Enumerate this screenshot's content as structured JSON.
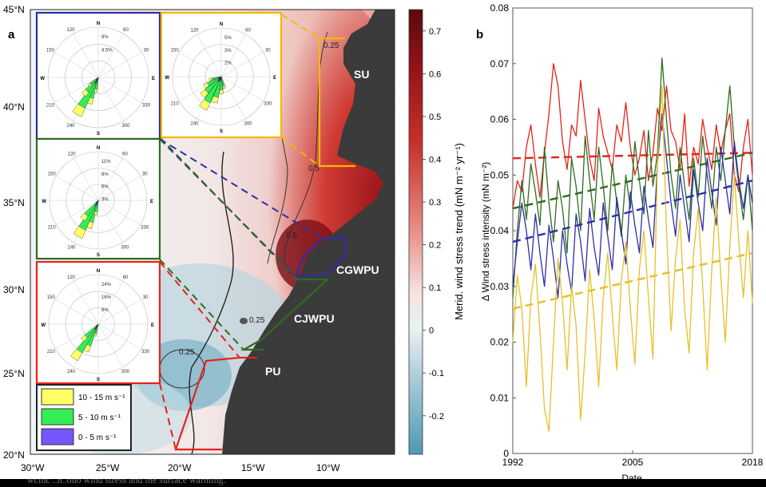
{
  "panel_a": {
    "label": "a",
    "lat_ticks": [
      "45°N",
      "40°N",
      "35°N",
      "30°N",
      "25°N",
      "20°N"
    ],
    "lon_ticks": [
      "30°W",
      "25°W",
      "20°W",
      "15°W",
      "10°W"
    ],
    "regions": [
      "SU",
      "CGWPU",
      "CJWPU",
      "PU"
    ],
    "region_colors": {
      "SU": "#f5b800",
      "CGWPU": "#2e2ea8",
      "CJWPU": "#2e6b1e",
      "PU": "#e8211a"
    },
    "contours": [
      "0.5",
      "0.5",
      "0.25",
      "0.25",
      "0.25"
    ],
    "colorbar": {
      "label": "Merid. wind stress trend (mN m⁻² yr⁻¹)",
      "ticks": [
        "0.7",
        "0.6",
        "0.5",
        "0.4",
        "0.3",
        "0.2",
        "0.1",
        "0",
        "-0.1",
        "-0.2"
      ]
    },
    "rose_dirs": {
      "n": "N",
      "e": "E",
      "s": "S",
      "w": "W"
    },
    "rose_angles": [
      "120",
      "60",
      "150",
      "30",
      "210",
      "330",
      "240",
      "300"
    ],
    "roses": [
      {
        "id": "rose-cgwpu",
        "color": "#2e2ea8",
        "rings": [
          "9%",
          "4.5%"
        ]
      },
      {
        "id": "rose-su",
        "color": "#f5b800",
        "rings": [
          "5%",
          "3%",
          "2%"
        ]
      },
      {
        "id": "rose-cjwpu",
        "color": "#2e6b1e",
        "rings": [
          "11%",
          "8%",
          "6%",
          "3%"
        ]
      },
      {
        "id": "rose-pu",
        "color": "#e8211a",
        "rings": [
          "24%",
          "16%",
          "8%"
        ]
      }
    ],
    "legend": [
      {
        "label": "10 - 15 m s⁻¹",
        "color": "#ffff66"
      },
      {
        "label": "5 - 10 m s⁻¹",
        "color": "#33ee55"
      },
      {
        "label": "0 - 5 m s⁻¹",
        "color": "#7755ff"
      }
    ]
  },
  "chart_data": {
    "type": "line",
    "panel_label": "b",
    "xlabel": "Date",
    "ylabel": "Δ Wind stress intensity (mN m⁻²)",
    "x_ticks": [
      "1992",
      "2005",
      "2018"
    ],
    "xlim": [
      1992,
      2018
    ],
    "ylim": [
      0,
      0.08
    ],
    "y_ticks": [
      "0",
      "0.01",
      "0.02",
      "0.03",
      "0.04",
      "0.05",
      "0.06",
      "0.07",
      "0.08"
    ],
    "grid": false,
    "series": [
      {
        "color": "#e8211a",
        "trend": [
          0.053,
          0.054
        ],
        "values": [
          0.044,
          0.049,
          0.047,
          0.055,
          0.059,
          0.052,
          0.046,
          0.054,
          0.061,
          0.07,
          0.066,
          0.056,
          0.051,
          0.059,
          0.057,
          0.067,
          0.06,
          0.053,
          0.049,
          0.062,
          0.057,
          0.054,
          0.051,
          0.059,
          0.056,
          0.063,
          0.055,
          0.05,
          0.053,
          0.058,
          0.049,
          0.054,
          0.062,
          0.058,
          0.066,
          0.058,
          0.056,
          0.051,
          0.061,
          0.048,
          0.055,
          0.052,
          0.06,
          0.055,
          0.051,
          0.059,
          0.054,
          0.058,
          0.061,
          0.05,
          0.047,
          0.055,
          0.06,
          0.05
        ]
      },
      {
        "color": "#2e6b1e",
        "trend": [
          0.044,
          0.054
        ],
        "values": [
          0.028,
          0.04,
          0.049,
          0.042,
          0.052,
          0.047,
          0.041,
          0.055,
          0.045,
          0.038,
          0.049,
          0.044,
          0.036,
          0.053,
          0.048,
          0.04,
          0.057,
          0.049,
          0.042,
          0.055,
          0.048,
          0.04,
          0.052,
          0.045,
          0.039,
          0.05,
          0.044,
          0.056,
          0.049,
          0.043,
          0.058,
          0.048,
          0.054,
          0.071,
          0.06,
          0.05,
          0.044,
          0.055,
          0.048,
          0.042,
          0.053,
          0.046,
          0.057,
          0.05,
          0.044,
          0.055,
          0.049,
          0.058,
          0.066,
          0.055,
          0.048,
          0.042,
          0.05,
          0.04
        ]
      },
      {
        "color": "#2e2ea8",
        "trend": [
          0.038,
          0.049
        ],
        "values": [
          0.03,
          0.038,
          0.045,
          0.04,
          0.033,
          0.043,
          0.036,
          0.03,
          0.041,
          0.035,
          0.028,
          0.04,
          0.034,
          0.029,
          0.043,
          0.038,
          0.031,
          0.044,
          0.037,
          0.032,
          0.045,
          0.039,
          0.033,
          0.046,
          0.04,
          0.034,
          0.047,
          0.041,
          0.036,
          0.048,
          0.042,
          0.037,
          0.052,
          0.061,
          0.053,
          0.045,
          0.039,
          0.05,
          0.044,
          0.038,
          0.051,
          0.045,
          0.04,
          0.053,
          0.047,
          0.041,
          0.055,
          0.049,
          0.043,
          0.056,
          0.049,
          0.044,
          0.05,
          0.045
        ]
      },
      {
        "color": "#e6c02a",
        "trend": [
          0.026,
          0.036
        ],
        "values": [
          0.02,
          0.032,
          0.026,
          0.012,
          0.028,
          0.034,
          0.022,
          0.008,
          0.004,
          0.02,
          0.035,
          0.027,
          0.015,
          0.03,
          0.023,
          0.006,
          0.018,
          0.033,
          0.024,
          0.012,
          0.028,
          0.036,
          0.025,
          0.015,
          0.031,
          0.038,
          0.026,
          0.016,
          0.033,
          0.04,
          0.028,
          0.017,
          0.052,
          0.066,
          0.04,
          0.022,
          0.035,
          0.042,
          0.026,
          0.018,
          0.036,
          0.044,
          0.03,
          0.015,
          0.033,
          0.046,
          0.032,
          0.02,
          0.037,
          0.05,
          0.038,
          0.028,
          0.04,
          0.027
        ]
      }
    ]
  },
  "caption_fragment": "wcinc ..n..ouo wind stress and the surface warming."
}
